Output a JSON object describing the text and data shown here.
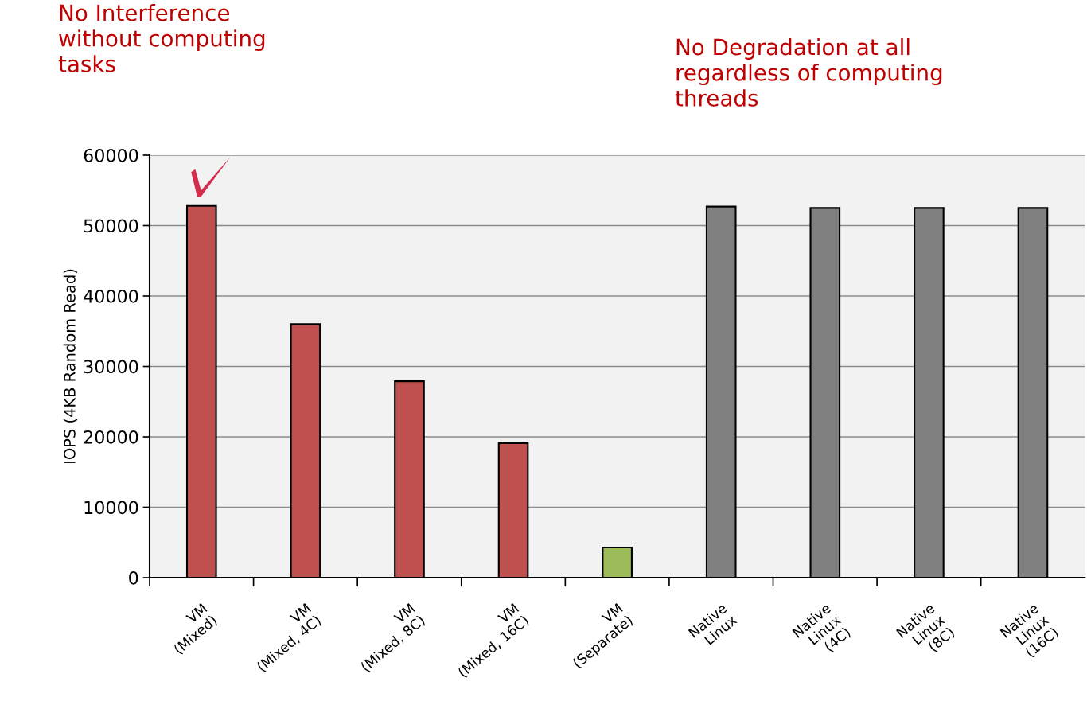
{
  "chart_data": {
    "type": "bar",
    "ylabel": "IOPS (4KB Random Read)",
    "categories": [
      "VM\n(Mixed)",
      "VM\n(Mixed, 4C)",
      "VM\n(Mixed, 8C)",
      "VM\n(Mixed, 16C)",
      "VM\n(Separate)",
      "Native\nLinux",
      "Native\nLinux\n(4C)",
      "Native\nLinux\n(8C)",
      "Native\nLinux\n(16C)"
    ],
    "values": [
      52800,
      36000,
      27900,
      19100,
      4300,
      52700,
      52500,
      52500,
      52500
    ],
    "colors": [
      "#c0504d",
      "#c0504d",
      "#c0504d",
      "#c0504d",
      "#9bbb59",
      "#808080",
      "#808080",
      "#808080",
      "#808080"
    ],
    "ylim": [
      0,
      60000
    ],
    "yticks": [
      0,
      10000,
      20000,
      30000,
      40000,
      50000,
      60000
    ],
    "grid": "y",
    "annotations": [
      "No Interference\nwithout computing\ntasks",
      "No Degradation at all\nregardless of computing\nthreads"
    ]
  }
}
